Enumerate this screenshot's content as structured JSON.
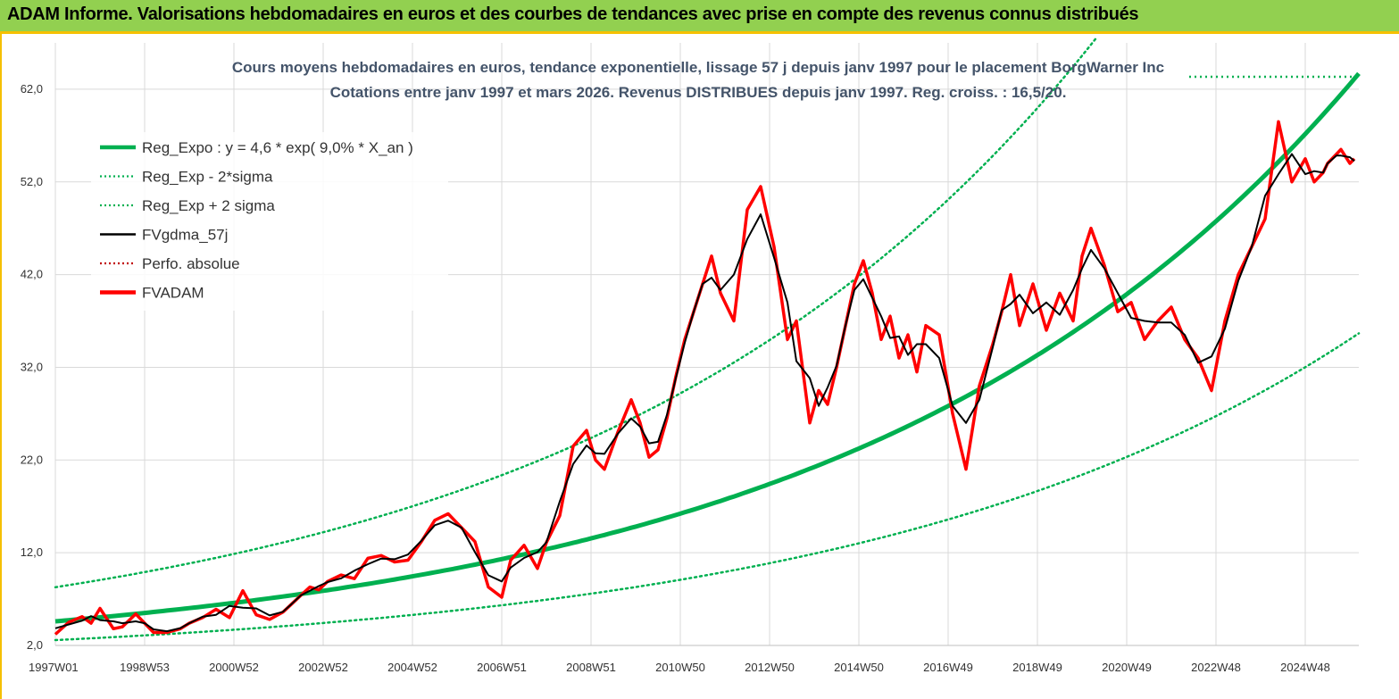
{
  "header": {
    "title": "ADAM Informe. Valorisations hebdomadaires en euros et des courbes de tendances avec prise en compte des revenus connus distribués"
  },
  "colors": {
    "header_bg": "#92d050",
    "reg_expo": "#00b050",
    "sigma": "#00b050",
    "gdma": "#000000",
    "perfo": "#c00000",
    "fvadam": "#ff0000",
    "grid": "#d9d9d9"
  },
  "chart_data": {
    "type": "line",
    "title_line1": "Cours moyens hebdomadaires en euros, tendance exponentielle, lissage 57 j depuis janv 1997 pour le placement BorgWarner Inc",
    "title_line2": "Cotations entre janv 1997 et mars 2026. Revenus DISTRIBUES depuis janv 1997. Reg. croiss. : 16,5/20.",
    "xlabel": "",
    "ylabel": "",
    "ylim": [
      2.0,
      67.0
    ],
    "xlim": [
      1997.0,
      2026.2
    ],
    "y_ticks": [
      "2,0",
      "12,0",
      "22,0",
      "32,0",
      "42,0",
      "52,0",
      "62,0"
    ],
    "y_tick_values": [
      2,
      12,
      22,
      32,
      42,
      52,
      62
    ],
    "x_ticks": [
      "1997W01",
      "1998W53",
      "2000W52",
      "2002W52",
      "2004W52",
      "2006W51",
      "2008W51",
      "2010W50",
      "2012W50",
      "2014W50",
      "2016W49",
      "2018W49",
      "2020W49",
      "2022W48",
      "2024W48"
    ],
    "x_tick_values": [
      1997.0,
      1999.0,
      2001.0,
      2003.0,
      2005.0,
      2007.0,
      2009.0,
      2011.0,
      2013.0,
      2015.0,
      2017.0,
      2019.0,
      2021.0,
      2023.0,
      2025.0
    ],
    "grid": true,
    "legend_position": "top-left",
    "legend": [
      {
        "label": "Reg_Expo : y = 4,6 * exp( 9,0% *  X_an )",
        "style": "solid-thick",
        "color": "#00b050"
      },
      {
        "label": "Reg_Exp - 2*sigma",
        "style": "dotted",
        "color": "#00b050"
      },
      {
        "label": "Reg_Exp + 2 sigma",
        "style": "dotted",
        "color": "#00b050"
      },
      {
        "label": "FVgdma_57j",
        "style": "solid",
        "color": "#000000"
      },
      {
        "label": "Perfo. absolue",
        "style": "dotted",
        "color": "#c00000"
      },
      {
        "label": "FVADAM",
        "style": "solid-thick",
        "color": "#ff0000"
      }
    ],
    "reg_expo": {
      "a": 4.6,
      "rate": 0.09,
      "lower_factor": 0.56,
      "upper_factor": 1.8
    },
    "fvadam": {
      "x": [
        1997.0,
        1997.3,
        1997.6,
        1997.8,
        1998.0,
        1998.3,
        1998.5,
        1998.8,
        1999.0,
        1999.2,
        1999.5,
        1999.8,
        2000.0,
        2000.3,
        2000.6,
        2000.9,
        2001.2,
        2001.5,
        2001.8,
        2002.1,
        2002.3,
        2002.5,
        2002.7,
        2002.9,
        2003.1,
        2003.4,
        2003.7,
        2004.0,
        2004.3,
        2004.6,
        2004.9,
        2005.2,
        2005.5,
        2005.8,
        2006.1,
        2006.4,
        2006.7,
        2007.0,
        2007.2,
        2007.5,
        2007.8,
        2008.0,
        2008.3,
        2008.6,
        2008.9,
        2009.1,
        2009.3,
        2009.6,
        2009.9,
        2010.1,
        2010.3,
        2010.5,
        2010.7,
        2010.9,
        2011.1,
        2011.3,
        2011.5,
        2011.7,
        2011.9,
        2012.2,
        2012.5,
        2012.8,
        2013.1,
        2013.4,
        2013.6,
        2013.9,
        2014.1,
        2014.3,
        2014.5,
        2014.7,
        2014.9,
        2015.1,
        2015.3,
        2015.5,
        2015.7,
        2015.9,
        2016.1,
        2016.3,
        2016.5,
        2016.8,
        2017.1,
        2017.4,
        2017.7,
        2018.0,
        2018.2,
        2018.4,
        2018.6,
        2018.9,
        2019.2,
        2019.5,
        2019.8,
        2020.0,
        2020.2,
        2020.5,
        2020.8,
        2021.1,
        2021.4,
        2021.7,
        2022.0,
        2022.3,
        2022.6,
        2022.9,
        2023.2,
        2023.5,
        2023.8,
        2024.1,
        2024.4,
        2024.7,
        2025.0,
        2025.2,
        2025.4,
        2025.5,
        2025.7,
        2025.8,
        2026.0,
        2026.1
      ],
      "values": [
        3.2,
        4.5,
        5.1,
        4.4,
        6.0,
        3.8,
        4.0,
        5.4,
        4.4,
        3.4,
        3.4,
        3.8,
        4.4,
        5.0,
        5.9,
        5.0,
        7.9,
        5.3,
        4.8,
        5.6,
        6.5,
        7.4,
        8.3,
        8.0,
        8.9,
        9.6,
        9.2,
        11.4,
        11.7,
        11.0,
        11.2,
        13.2,
        15.5,
        16.2,
        14.7,
        13.2,
        8.3,
        7.2,
        11.2,
        12.8,
        10.3,
        13.1,
        16.0,
        23.5,
        25.2,
        22.0,
        21.0,
        25.0,
        28.5,
        26.0,
        22.3,
        23.1,
        26.5,
        31.0,
        35.0,
        38.0,
        41.0,
        44.0,
        40.0,
        37.0,
        49.0,
        51.5,
        45.0,
        35.0,
        37.0,
        26.0,
        29.5,
        28.0,
        32.0,
        36.5,
        41.0,
        43.5,
        40.0,
        35.0,
        37.5,
        33.0,
        35.5,
        31.5,
        36.5,
        35.5,
        27.0,
        21.0,
        30.0,
        34.5,
        38.0,
        42.0,
        36.5,
        41.0,
        36.0,
        40.0,
        37.0,
        44.0,
        47.0,
        43.0,
        38.0,
        39.0,
        35.0,
        37.0,
        38.5,
        35.0,
        33.0,
        29.5,
        37.0,
        42.0,
        45.0,
        48.0,
        58.5,
        52.0,
        54.5,
        52.0,
        53.0,
        54.0,
        55.0,
        55.5,
        54.0,
        54.5
      ]
    }
  }
}
